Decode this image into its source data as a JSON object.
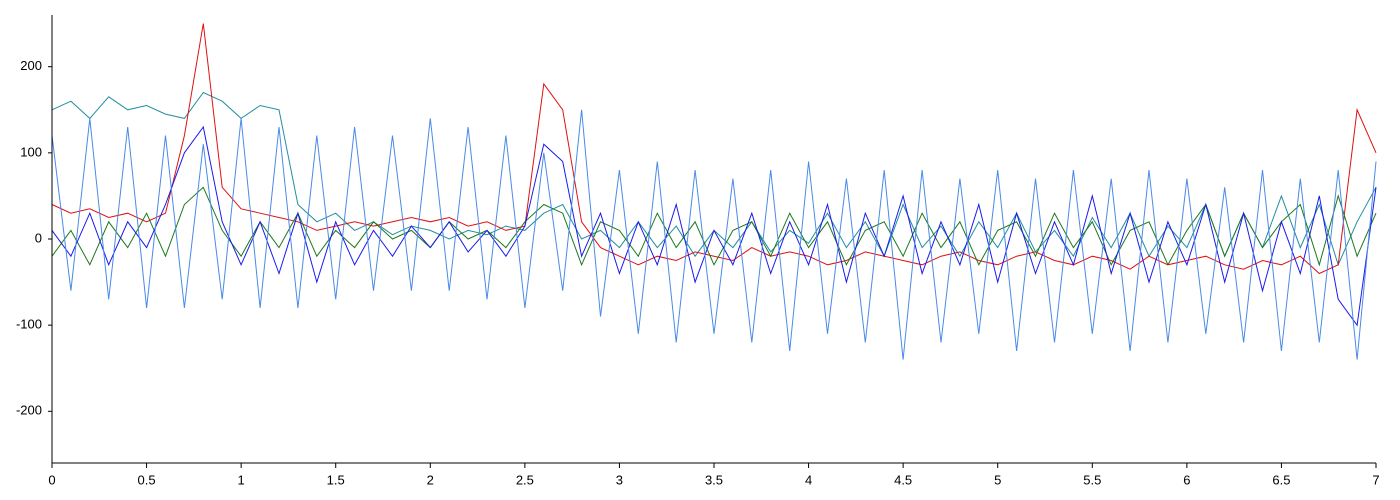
{
  "chart_data": {
    "type": "line",
    "x": [
      0,
      0.1,
      0.2,
      0.3,
      0.4,
      0.5,
      0.6,
      0.7,
      0.8,
      0.9,
      1,
      1.1,
      1.2,
      1.3,
      1.4,
      1.5,
      1.6,
      1.7,
      1.8,
      1.9,
      2,
      2.1,
      2.2,
      2.3,
      2.4,
      2.5,
      2.6,
      2.7,
      2.8,
      2.9,
      3,
      3.1,
      3.2,
      3.3,
      3.4,
      3.5,
      3.6,
      3.7,
      3.8,
      3.9,
      4,
      4.1,
      4.2,
      4.3,
      4.4,
      4.5,
      4.6,
      4.7,
      4.8,
      4.9,
      5,
      5.1,
      5.2,
      5.3,
      5.4,
      5.5,
      5.6,
      5.7,
      5.8,
      5.9,
      6,
      6.1,
      6.2,
      6.3,
      6.4,
      6.5,
      6.6,
      6.7,
      6.8,
      6.9,
      7
    ],
    "series": [
      {
        "color": "#1f8fa0",
        "values": [
          150,
          160,
          140,
          165,
          150,
          155,
          145,
          140,
          170,
          160,
          140,
          155,
          150,
          40,
          20,
          30,
          10,
          20,
          5,
          15,
          10,
          0,
          10,
          5,
          15,
          10,
          30,
          40,
          0,
          10,
          -10,
          20,
          -10,
          15,
          -20,
          10,
          -10,
          20,
          -15,
          10,
          -5,
          30,
          -10,
          20,
          -20,
          40,
          -10,
          15,
          -20,
          20,
          -10,
          30,
          -15,
          10,
          -20,
          25,
          -10,
          30,
          -20,
          15,
          -10,
          40,
          -20,
          30,
          -10,
          50,
          -10,
          40,
          -30,
          20,
          60
        ]
      },
      {
        "color": "#e01010",
        "values": [
          40,
          30,
          35,
          25,
          30,
          20,
          30,
          120,
          250,
          60,
          35,
          30,
          25,
          20,
          10,
          15,
          20,
          15,
          20,
          25,
          20,
          25,
          15,
          20,
          10,
          15,
          180,
          150,
          20,
          -10,
          -20,
          -30,
          -20,
          -25,
          -15,
          -20,
          -25,
          -10,
          -20,
          -15,
          -20,
          -30,
          -25,
          -15,
          -20,
          -25,
          -30,
          -20,
          -15,
          -25,
          -30,
          -20,
          -15,
          -25,
          -30,
          -20,
          -25,
          -35,
          -20,
          -30,
          -25,
          -20,
          -30,
          -35,
          -25,
          -30,
          -20,
          -40,
          -30,
          150,
          100
        ]
      },
      {
        "color": "#1a7a1a",
        "values": [
          -20,
          10,
          -30,
          20,
          -10,
          30,
          -20,
          40,
          60,
          10,
          -20,
          20,
          -10,
          30,
          -20,
          10,
          -10,
          20,
          0,
          10,
          -10,
          20,
          0,
          10,
          -10,
          20,
          40,
          30,
          -30,
          20,
          10,
          -20,
          30,
          -10,
          20,
          -30,
          10,
          20,
          -20,
          30,
          -10,
          20,
          -30,
          10,
          20,
          -20,
          30,
          -10,
          20,
          -30,
          10,
          20,
          -20,
          30,
          -10,
          20,
          -30,
          10,
          20,
          -30,
          10,
          40,
          -20,
          30,
          -10,
          20,
          40,
          -30,
          50,
          -20,
          30
        ]
      },
      {
        "color": "#1a1aee",
        "values": [
          10,
          -20,
          30,
          -30,
          20,
          -10,
          40,
          100,
          130,
          20,
          -30,
          20,
          -40,
          30,
          -50,
          20,
          -30,
          10,
          -20,
          15,
          -10,
          20,
          -15,
          10,
          -20,
          15,
          110,
          90,
          -20,
          30,
          -40,
          20,
          -30,
          40,
          -50,
          10,
          -30,
          30,
          -40,
          20,
          -30,
          40,
          -50,
          30,
          -20,
          50,
          -40,
          20,
          -30,
          40,
          -50,
          30,
          -40,
          20,
          -30,
          50,
          -40,
          30,
          -50,
          20,
          -30,
          40,
          -50,
          30,
          -60,
          20,
          -40,
          50,
          -70,
          -100,
          60
        ]
      },
      {
        "color": "#4a8ae8",
        "values": [
          120,
          -60,
          140,
          -70,
          130,
          -80,
          120,
          -80,
          110,
          -70,
          140,
          -80,
          130,
          -80,
          120,
          -70,
          130,
          -60,
          120,
          -60,
          140,
          -60,
          130,
          -70,
          120,
          -80,
          100,
          -60,
          150,
          -90,
          80,
          -110,
          90,
          -120,
          80,
          -110,
          70,
          -120,
          80,
          -130,
          90,
          -110,
          70,
          -120,
          80,
          -140,
          80,
          -120,
          70,
          -110,
          80,
          -130,
          70,
          -120,
          80,
          -110,
          70,
          -130,
          80,
          -120,
          70,
          -110,
          60,
          -120,
          80,
          -130,
          70,
          -120,
          80,
          -140,
          90
        ]
      }
    ],
    "xlim": [
      0,
      7
    ],
    "xticks": [
      0,
      0.5,
      1,
      1.5,
      2,
      2.5,
      3,
      3.5,
      4,
      4.5,
      5,
      5.5,
      6,
      6.5,
      7
    ],
    "ylim": [
      -260,
      260
    ],
    "yticks": [
      -200,
      -100,
      0,
      100,
      200
    ]
  }
}
